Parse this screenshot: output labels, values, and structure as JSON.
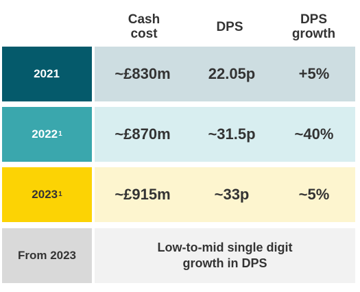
{
  "chart_data": {
    "type": "table",
    "columns": [
      "Cash\ncost",
      "DPS",
      "DPS\ngrowth"
    ],
    "rows": [
      {
        "label": "2021",
        "footnote": "",
        "cells": [
          "~£830m",
          "22.05p",
          "+5%"
        ],
        "label_bg": "#055a6b",
        "label_color": "#ffffff",
        "data_bg": "#cddde1"
      },
      {
        "label": "2022",
        "footnote": "1",
        "cells": [
          "~£870m",
          "~31.5p",
          "~40%"
        ],
        "label_bg": "#3aa7ad",
        "label_color": "#ffffff",
        "data_bg": "#d8eef0"
      },
      {
        "label": "2023",
        "footnote": "1",
        "cells": [
          "~£915m",
          "~33p",
          "~5%"
        ],
        "label_bg": "#fcd304",
        "label_color": "#333333",
        "data_bg": "#fdf5cf"
      }
    ],
    "outlook": {
      "label": "From 2023",
      "text": "Low-to-mid single digit\ngrowth in DPS",
      "label_bg": "#d9d9d9",
      "label_color": "#333333",
      "data_bg": "#f2f2f2"
    }
  }
}
